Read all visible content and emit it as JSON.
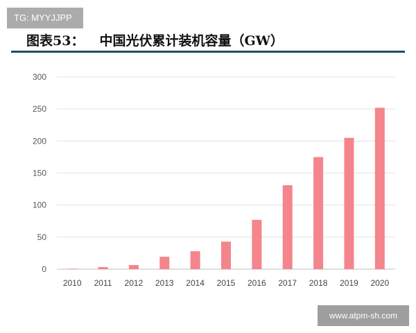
{
  "watermark_top": "TG: MYYJJPP",
  "watermark_bottom": "www.atpm-sh.com",
  "chart_data": {
    "type": "bar",
    "title_prefix": "图表53：",
    "title": "中国光伏累计装机容量（GW）",
    "categories": [
      "2010",
      "2011",
      "2012",
      "2013",
      "2014",
      "2015",
      "2016",
      "2017",
      "2018",
      "2019",
      "2020"
    ],
    "values": [
      0.8,
      3.3,
      6.5,
      19.4,
      28,
      43,
      77,
      131,
      175,
      205,
      252
    ],
    "ylim": [
      0,
      300
    ],
    "yticks": [
      0,
      50,
      100,
      150,
      200,
      250,
      300
    ],
    "grid": true,
    "bar_color": "#f4858d",
    "title_rule_color": "#1f4e6b"
  }
}
